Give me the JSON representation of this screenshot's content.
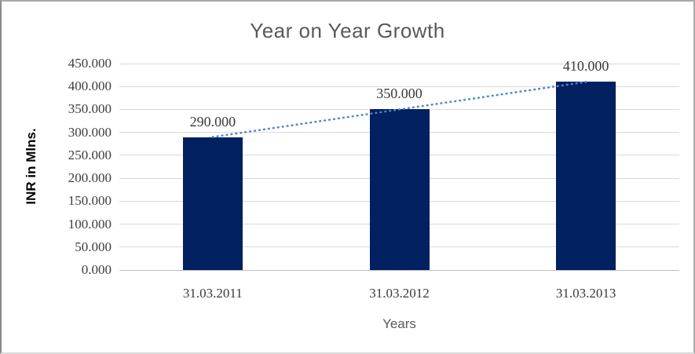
{
  "chart_data": {
    "type": "bar",
    "title": "Year on Year Growth",
    "xlabel": "Years",
    "ylabel": "INR in Mlns.",
    "categories": [
      "31.03.2011",
      "31.03.2012",
      "31.03.2013"
    ],
    "values": [
      290,
      350,
      410
    ],
    "bar_labels": [
      "290.000",
      "350.000",
      "410.000"
    ],
    "ytick_values": [
      450,
      400,
      350,
      300,
      250,
      200,
      150,
      100,
      50,
      0
    ],
    "ytick_labels": [
      "450.000",
      "400.000",
      "350.000",
      "300.000",
      "250.000",
      "200.000",
      "150.000",
      "100.000",
      "50.000",
      "0.000"
    ],
    "ylim": [
      0,
      450
    ],
    "grid": true,
    "legend": false,
    "trendline": {
      "type": "linear",
      "style": "dotted",
      "color": "#4B86C8"
    },
    "colors": {
      "bar": "#012060",
      "gridline": "#D9D9D9",
      "axis_line": "#BFBFBF",
      "title": "#595959",
      "tick_label": "#3D3D3D",
      "axis_title": "#595959",
      "y_axis_title": "#000000"
    }
  }
}
